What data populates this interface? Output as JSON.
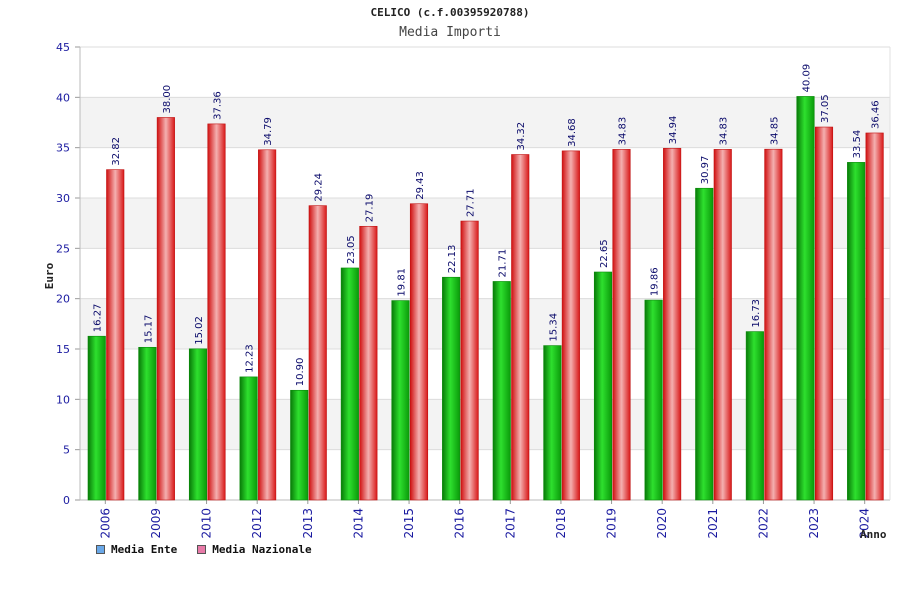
{
  "chart_data": {
    "type": "bar",
    "title": "CELICO (c.f.00395920788)",
    "subtitle": "Media Importi",
    "xlabel": "Anno",
    "ylabel": "Euro",
    "ylim": [
      0,
      45
    ],
    "yticks": [
      0,
      5,
      10,
      15,
      20,
      25,
      30,
      35,
      40,
      45
    ],
    "categories": [
      "2006",
      "2009",
      "2010",
      "2012",
      "2013",
      "2014",
      "2015",
      "2016",
      "2017",
      "2018",
      "2019",
      "2020",
      "2021",
      "2022",
      "2023",
      "2024"
    ],
    "series": [
      {
        "name": "Media Ente",
        "color": "#10c010",
        "values": [
          16.27,
          15.17,
          15.02,
          12.23,
          10.9,
          23.05,
          19.81,
          22.13,
          21.71,
          15.34,
          22.65,
          19.86,
          30.97,
          16.73,
          40.09,
          33.54
        ],
        "labels": [
          "16.27",
          "15.17",
          "15.02",
          "12.23",
          "10.90",
          "23.05",
          "19.81",
          "22.13",
          "21.71",
          "15.34",
          "22.65",
          "19.86",
          "30.97",
          "16.73",
          "40.09",
          "33.54"
        ]
      },
      {
        "name": "Media Nazionale",
        "color": "#e82020",
        "values": [
          32.82,
          38.0,
          37.36,
          34.79,
          29.24,
          27.19,
          29.43,
          27.71,
          34.32,
          34.68,
          34.83,
          34.94,
          34.83,
          34.85,
          37.05,
          36.46
        ],
        "labels": [
          "32.82",
          "38.00",
          "37.36",
          "34.79",
          "29.24",
          "27.19",
          "29.43",
          "27.71",
          "34.32",
          "34.68",
          "34.83",
          "34.94",
          "34.83",
          "34.85",
          "37.05",
          "36.46"
        ]
      }
    ],
    "legend": [
      {
        "label": "Media Ente",
        "color": "#6aa8e8"
      },
      {
        "label": "Media Nazionale",
        "color": "#e87aa8"
      }
    ],
    "grid": true,
    "legend_position": "bottom-left"
  }
}
